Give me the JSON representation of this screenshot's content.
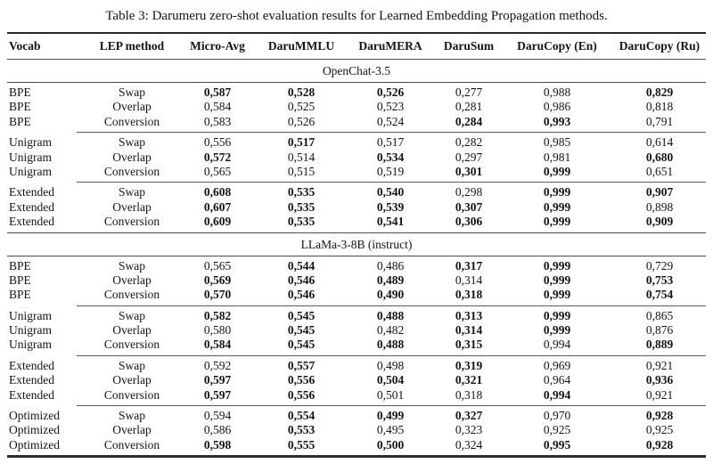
{
  "title": "Table 3: Darumeru zero-shot evaluation results for Learned Embedding Propagation methods.",
  "table": {
    "columns": [
      "Vocab",
      "LEP method",
      "Micro-Avg",
      "DaruMMLU",
      "DaruMERA",
      "DaruSum",
      "DaruCopy (En)",
      "DaruCopy (Ru)"
    ],
    "sections": [
      {
        "name": "OpenChat-3.5",
        "groups": [
          {
            "rows": [
              {
                "vocab": "BPE",
                "method": "Swap",
                "values": [
                  {
                    "t": "0,587",
                    "bold": true
                  },
                  {
                    "t": "0,528",
                    "bold": true
                  },
                  {
                    "t": "0,526",
                    "bold": true
                  },
                  {
                    "t": "0,277",
                    "bold": false
                  },
                  {
                    "t": "0,988",
                    "bold": false
                  },
                  {
                    "t": "0,829",
                    "bold": true
                  }
                ]
              },
              {
                "vocab": "BPE",
                "method": "Overlap",
                "values": [
                  {
                    "t": "0,584",
                    "bold": false
                  },
                  {
                    "t": "0,525",
                    "bold": false
                  },
                  {
                    "t": "0,523",
                    "bold": false
                  },
                  {
                    "t": "0,281",
                    "bold": false
                  },
                  {
                    "t": "0,986",
                    "bold": false
                  },
                  {
                    "t": "0,818",
                    "bold": false
                  }
                ]
              },
              {
                "vocab": "BPE",
                "method": "Conversion",
                "values": [
                  {
                    "t": "0,583",
                    "bold": false
                  },
                  {
                    "t": "0,526",
                    "bold": false
                  },
                  {
                    "t": "0,524",
                    "bold": false
                  },
                  {
                    "t": "0,284",
                    "bold": true
                  },
                  {
                    "t": "0,993",
                    "bold": true
                  },
                  {
                    "t": "0,791",
                    "bold": false
                  }
                ]
              }
            ]
          },
          {
            "rows": [
              {
                "vocab": "Unigram",
                "method": "Swap",
                "values": [
                  {
                    "t": "0,556",
                    "bold": false
                  },
                  {
                    "t": "0,517",
                    "bold": true
                  },
                  {
                    "t": "0,517",
                    "bold": false
                  },
                  {
                    "t": "0,282",
                    "bold": false
                  },
                  {
                    "t": "0,985",
                    "bold": false
                  },
                  {
                    "t": "0,614",
                    "bold": false
                  }
                ]
              },
              {
                "vocab": "Unigram",
                "method": "Overlap",
                "values": [
                  {
                    "t": "0,572",
                    "bold": true
                  },
                  {
                    "t": "0,514",
                    "bold": false
                  },
                  {
                    "t": "0,534",
                    "bold": true
                  },
                  {
                    "t": "0,297",
                    "bold": false
                  },
                  {
                    "t": "0,981",
                    "bold": false
                  },
                  {
                    "t": "0,680",
                    "bold": true
                  }
                ]
              },
              {
                "vocab": "Unigram",
                "method": "Conversion",
                "values": [
                  {
                    "t": "0,565",
                    "bold": false
                  },
                  {
                    "t": "0,515",
                    "bold": false
                  },
                  {
                    "t": "0,519",
                    "bold": false
                  },
                  {
                    "t": "0,301",
                    "bold": true
                  },
                  {
                    "t": "0,999",
                    "bold": true
                  },
                  {
                    "t": "0,651",
                    "bold": false
                  }
                ]
              }
            ]
          },
          {
            "rows": [
              {
                "vocab": "Extended",
                "method": "Swap",
                "values": [
                  {
                    "t": "0,608",
                    "bold": true
                  },
                  {
                    "t": "0,535",
                    "bold": true
                  },
                  {
                    "t": "0,540",
                    "bold": true
                  },
                  {
                    "t": "0,298",
                    "bold": false
                  },
                  {
                    "t": "0,999",
                    "bold": true
                  },
                  {
                    "t": "0,907",
                    "bold": true
                  }
                ]
              },
              {
                "vocab": "Extended",
                "method": "Overlap",
                "values": [
                  {
                    "t": "0,607",
                    "bold": true
                  },
                  {
                    "t": "0,535",
                    "bold": true
                  },
                  {
                    "t": "0,539",
                    "bold": true
                  },
                  {
                    "t": "0,307",
                    "bold": true
                  },
                  {
                    "t": "0,999",
                    "bold": true
                  },
                  {
                    "t": "0,898",
                    "bold": false
                  }
                ]
              },
              {
                "vocab": "Extended",
                "method": "Conversion",
                "values": [
                  {
                    "t": "0,609",
                    "bold": true
                  },
                  {
                    "t": "0,535",
                    "bold": true
                  },
                  {
                    "t": "0,541",
                    "bold": true
                  },
                  {
                    "t": "0,306",
                    "bold": true
                  },
                  {
                    "t": "0,999",
                    "bold": true
                  },
                  {
                    "t": "0,909",
                    "bold": true
                  }
                ]
              }
            ]
          }
        ]
      },
      {
        "name": "LLaMa-3-8B (instruct)",
        "groups": [
          {
            "rows": [
              {
                "vocab": "BPE",
                "method": "Swap",
                "values": [
                  {
                    "t": "0,565",
                    "bold": false
                  },
                  {
                    "t": "0,544",
                    "bold": true
                  },
                  {
                    "t": "0,486",
                    "bold": false
                  },
                  {
                    "t": "0,317",
                    "bold": true
                  },
                  {
                    "t": "0,999",
                    "bold": true
                  },
                  {
                    "t": "0,729",
                    "bold": false
                  }
                ]
              },
              {
                "vocab": "BPE",
                "method": "Overlap",
                "values": [
                  {
                    "t": "0,569",
                    "bold": true
                  },
                  {
                    "t": "0,546",
                    "bold": true
                  },
                  {
                    "t": "0,489",
                    "bold": true
                  },
                  {
                    "t": "0,314",
                    "bold": false
                  },
                  {
                    "t": "0,999",
                    "bold": true
                  },
                  {
                    "t": "0,753",
                    "bold": true
                  }
                ]
              },
              {
                "vocab": "BPE",
                "method": "Conversion",
                "values": [
                  {
                    "t": "0,570",
                    "bold": true
                  },
                  {
                    "t": "0,546",
                    "bold": true
                  },
                  {
                    "t": "0,490",
                    "bold": true
                  },
                  {
                    "t": "0,318",
                    "bold": true
                  },
                  {
                    "t": "0,999",
                    "bold": true
                  },
                  {
                    "t": "0,754",
                    "bold": true
                  }
                ]
              }
            ]
          },
          {
            "rows": [
              {
                "vocab": "Unigram",
                "method": "Swap",
                "values": [
                  {
                    "t": "0,582",
                    "bold": true
                  },
                  {
                    "t": "0,545",
                    "bold": true
                  },
                  {
                    "t": "0,488",
                    "bold": true
                  },
                  {
                    "t": "0,313",
                    "bold": true
                  },
                  {
                    "t": "0,999",
                    "bold": true
                  },
                  {
                    "t": "0,865",
                    "bold": false
                  }
                ]
              },
              {
                "vocab": "Unigram",
                "method": "Overlap",
                "values": [
                  {
                    "t": "0,580",
                    "bold": false
                  },
                  {
                    "t": "0,545",
                    "bold": true
                  },
                  {
                    "t": "0,482",
                    "bold": false
                  },
                  {
                    "t": "0,314",
                    "bold": true
                  },
                  {
                    "t": "0,999",
                    "bold": true
                  },
                  {
                    "t": "0,876",
                    "bold": false
                  }
                ]
              },
              {
                "vocab": "Unigram",
                "method": "Conversion",
                "values": [
                  {
                    "t": "0,584",
                    "bold": true
                  },
                  {
                    "t": "0,545",
                    "bold": true
                  },
                  {
                    "t": "0,488",
                    "bold": true
                  },
                  {
                    "t": "0,315",
                    "bold": true
                  },
                  {
                    "t": "0,994",
                    "bold": false
                  },
                  {
                    "t": "0,889",
                    "bold": true
                  }
                ]
              }
            ]
          },
          {
            "rows": [
              {
                "vocab": "Extended",
                "method": "Swap",
                "values": [
                  {
                    "t": "0,592",
                    "bold": false
                  },
                  {
                    "t": "0,557",
                    "bold": true
                  },
                  {
                    "t": "0,498",
                    "bold": false
                  },
                  {
                    "t": "0,319",
                    "bold": true
                  },
                  {
                    "t": "0,969",
                    "bold": false
                  },
                  {
                    "t": "0,921",
                    "bold": false
                  }
                ]
              },
              {
                "vocab": "Extended",
                "method": "Overlap",
                "values": [
                  {
                    "t": "0,597",
                    "bold": true
                  },
                  {
                    "t": "0,556",
                    "bold": true
                  },
                  {
                    "t": "0,504",
                    "bold": true
                  },
                  {
                    "t": "0,321",
                    "bold": true
                  },
                  {
                    "t": "0,964",
                    "bold": false
                  },
                  {
                    "t": "0,936",
                    "bold": true
                  }
                ]
              },
              {
                "vocab": "Extended",
                "method": "Conversion",
                "values": [
                  {
                    "t": "0,597",
                    "bold": true
                  },
                  {
                    "t": "0,556",
                    "bold": true
                  },
                  {
                    "t": "0,501",
                    "bold": false
                  },
                  {
                    "t": "0,318",
                    "bold": false
                  },
                  {
                    "t": "0,994",
                    "bold": true
                  },
                  {
                    "t": "0,921",
                    "bold": false
                  }
                ]
              }
            ]
          },
          {
            "rows": [
              {
                "vocab": "Optimized",
                "method": "Swap",
                "values": [
                  {
                    "t": "0,594",
                    "bold": false
                  },
                  {
                    "t": "0,554",
                    "bold": true
                  },
                  {
                    "t": "0,499",
                    "bold": true
                  },
                  {
                    "t": "0,327",
                    "bold": true
                  },
                  {
                    "t": "0,970",
                    "bold": false
                  },
                  {
                    "t": "0,928",
                    "bold": true
                  }
                ]
              },
              {
                "vocab": "Optimized",
                "method": "Overlap",
                "values": [
                  {
                    "t": "0,586",
                    "bold": false
                  },
                  {
                    "t": "0,553",
                    "bold": true
                  },
                  {
                    "t": "0,495",
                    "bold": false
                  },
                  {
                    "t": "0,323",
                    "bold": false
                  },
                  {
                    "t": "0,925",
                    "bold": false
                  },
                  {
                    "t": "0,925",
                    "bold": false
                  }
                ]
              },
              {
                "vocab": "Optimized",
                "method": "Conversion",
                "values": [
                  {
                    "t": "0,598",
                    "bold": true
                  },
                  {
                    "t": "0,555",
                    "bold": true
                  },
                  {
                    "t": "0,500",
                    "bold": true
                  },
                  {
                    "t": "0,324",
                    "bold": false
                  },
                  {
                    "t": "0,995",
                    "bold": true
                  },
                  {
                    "t": "0,928",
                    "bold": true
                  }
                ]
              }
            ]
          }
        ]
      }
    ]
  }
}
